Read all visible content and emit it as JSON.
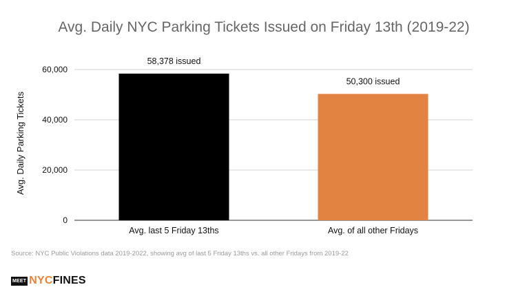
{
  "chart_data": {
    "type": "bar",
    "title": "Avg. Daily NYC Parking Tickets Issued on Friday 13th (2019-22)",
    "ylabel": "Avg. Daily Parking Tickets",
    "xlabel": "",
    "categories": [
      "Avg. last 5 Friday 13ths",
      "Avg. of all other Fridays"
    ],
    "values": [
      58378,
      50300
    ],
    "data_labels": [
      "58,378 issued",
      "50,300 issued"
    ],
    "bar_colors": [
      "#000000",
      "#e28342"
    ],
    "ylim": [
      0,
      60000
    ],
    "yticks": [
      0,
      20000,
      40000,
      60000
    ],
    "ytick_labels": [
      "0",
      "20,000",
      "40,000",
      "60,000"
    ],
    "grid": true,
    "legend": "none"
  },
  "source": "Source: NYC Public Violations data 2019-2022, showing avg of last 5 Friday 13ths vs. all other Fridays from 2019-22",
  "logo": {
    "box": "MEET",
    "nyc": "NYC",
    "fines": "FINES"
  }
}
